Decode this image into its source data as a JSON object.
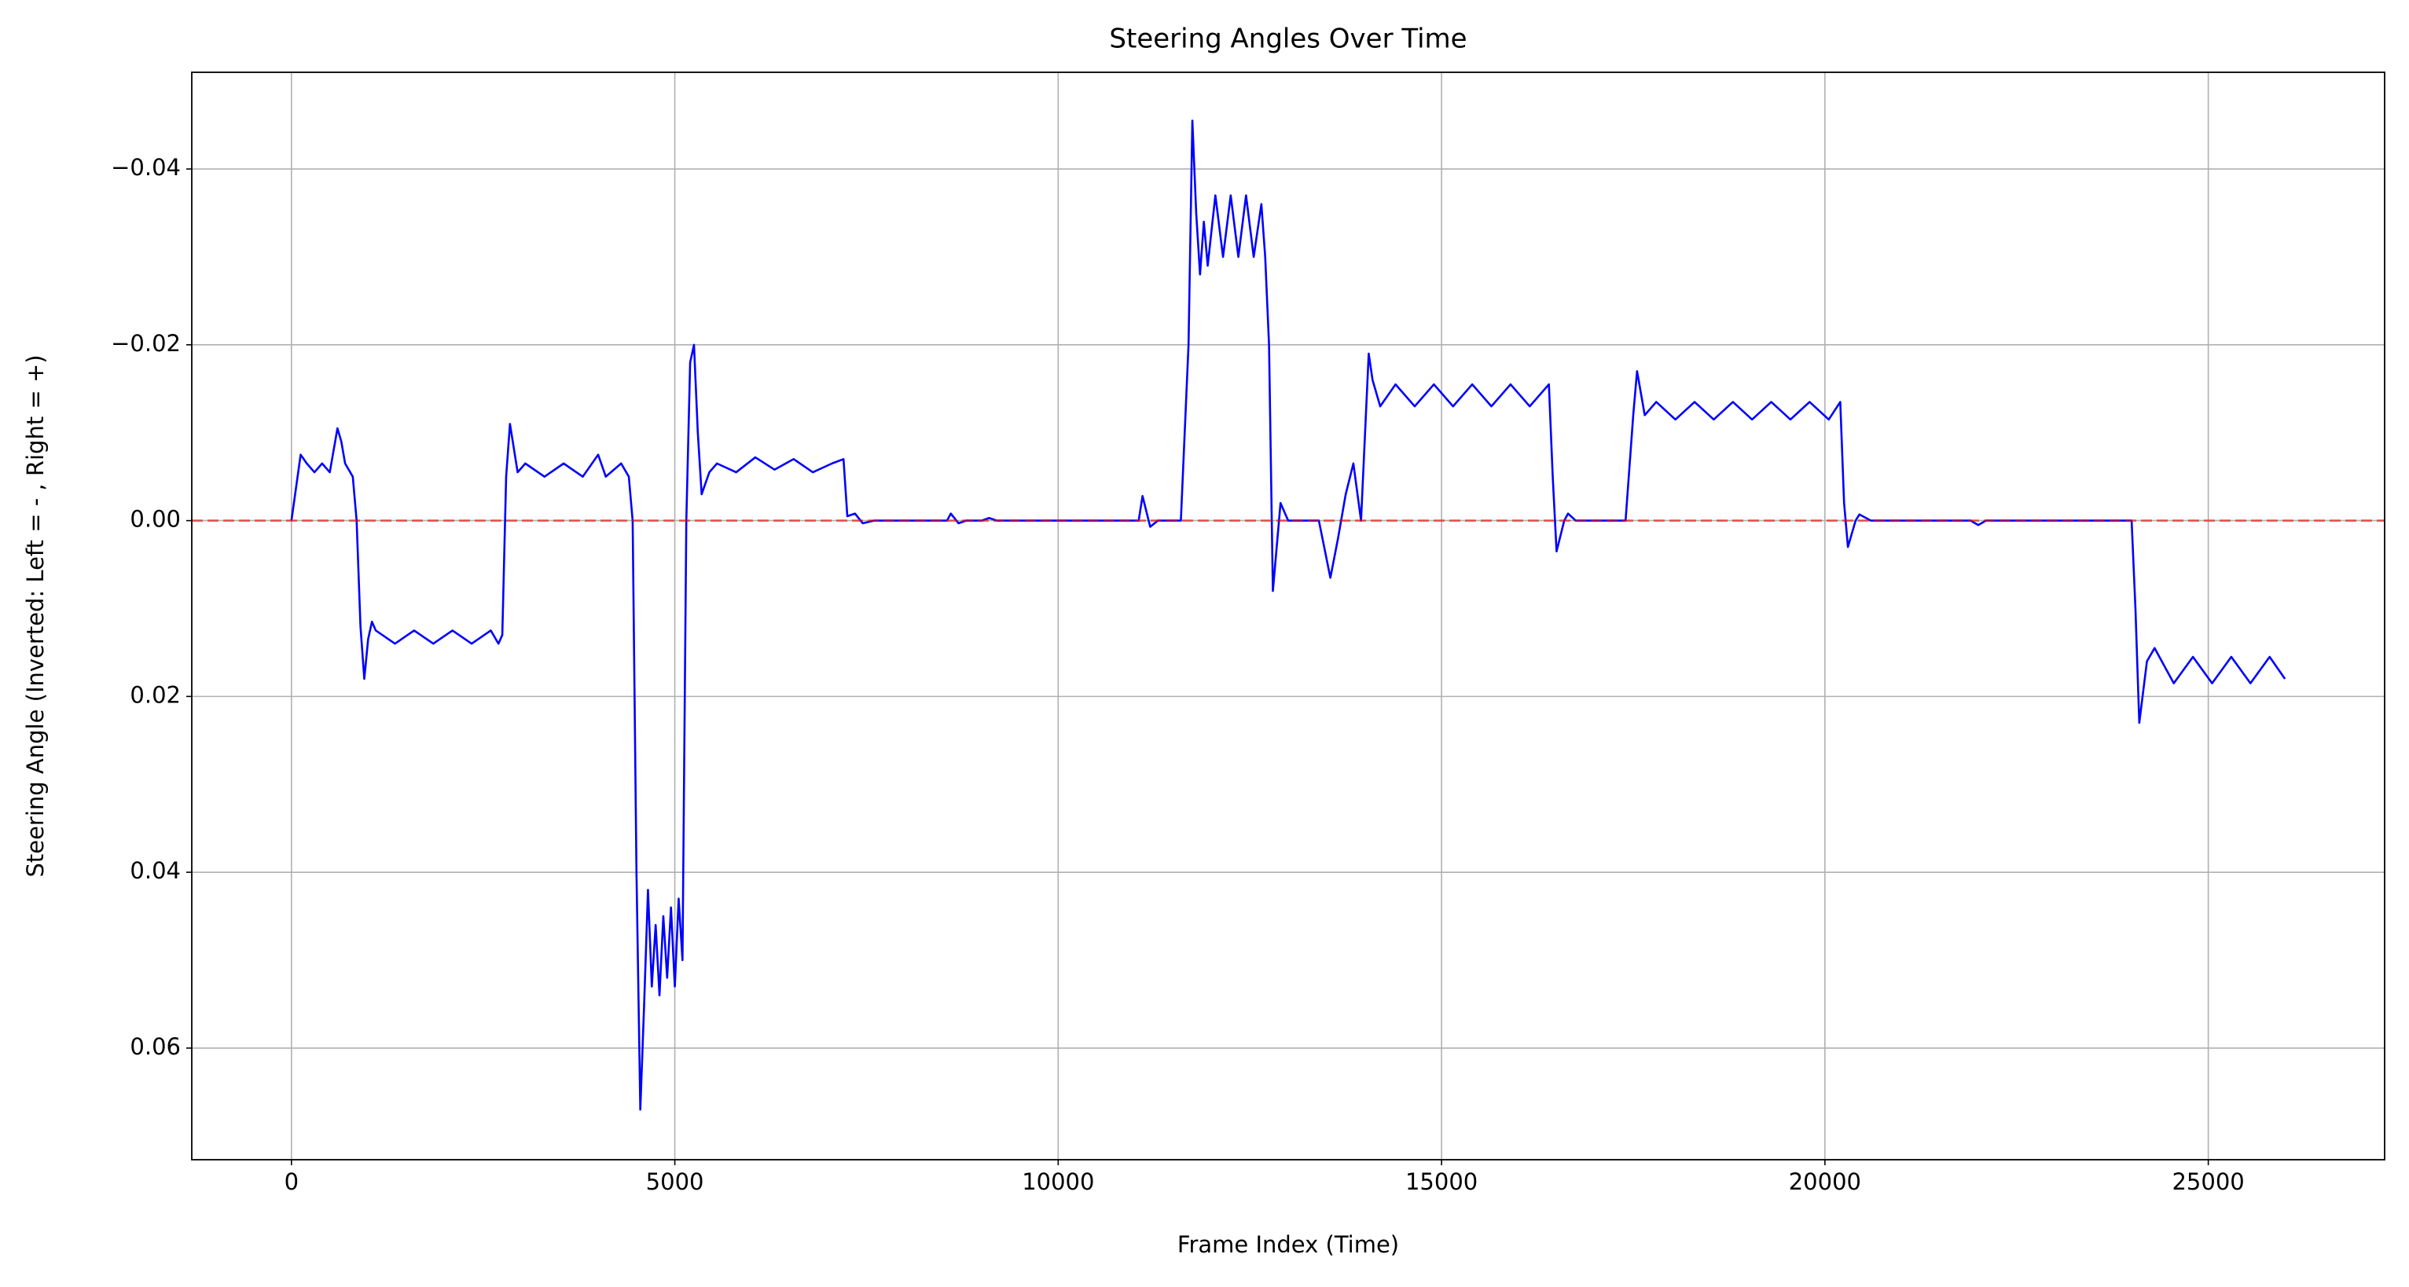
{
  "chart_data": {
    "type": "line",
    "title": "Steering Angles Over Time",
    "x_label": "Frame Index (Time)",
    "y_label": "Steering Angle (Inverted: Left = - , Right = +)",
    "color": "blue",
    "grid": true,
    "y_inverted": true,
    "xlim": [
      -1300,
      27300
    ],
    "ylim": [
      -0.051,
      0.0727
    ],
    "xticks": [
      0,
      5000,
      10000,
      15000,
      20000,
      25000
    ],
    "yticks": [
      {
        "value": -0.04,
        "label": "−0.04"
      },
      {
        "value": -0.02,
        "label": "−0.02"
      },
      {
        "value": 0,
        "label": "0.00"
      },
      0.02,
      0.04,
      0.06
    ],
    "hline": {
      "value": 0,
      "color": "red",
      "style": "dashed"
    },
    "x": [
      0,
      120,
      200,
      300,
      400,
      500,
      600,
      650,
      700,
      800,
      850,
      900,
      950,
      1000,
      1050,
      1100,
      1350,
      1600,
      1850,
      2100,
      2350,
      2600,
      2700,
      2750,
      2800,
      2850,
      2950,
      3050,
      3300,
      3550,
      3800,
      4000,
      4100,
      4300,
      4400,
      4450,
      4500,
      4550,
      4600,
      4650,
      4700,
      4750,
      4800,
      4850,
      4900,
      4950,
      5000,
      5050,
      5100,
      5150,
      5200,
      5250,
      5300,
      5350,
      5450,
      5550,
      5800,
      6050,
      6300,
      6550,
      6800,
      7050,
      7200,
      7250,
      7350,
      7450,
      7600,
      8550,
      8600,
      8700,
      8800,
      9000,
      9100,
      9200,
      11050,
      11100,
      11200,
      11300,
      11600,
      11700,
      11750,
      11800,
      11850,
      11900,
      11950,
      12050,
      12150,
      12250,
      12350,
      12450,
      12550,
      12650,
      12700,
      12750,
      12800,
      12900,
      13000,
      13400,
      13550,
      13650,
      13750,
      13850,
      13950,
      14050,
      14100,
      14200,
      14400,
      14650,
      14900,
      15150,
      15400,
      15650,
      15900,
      16150,
      16400,
      16450,
      16500,
      16600,
      16650,
      16750,
      17400,
      17500,
      17550,
      17650,
      17800,
      18050,
      18300,
      18550,
      18800,
      19050,
      19300,
      19550,
      19800,
      20050,
      20200,
      20250,
      20300,
      20400,
      20450,
      20600,
      21900,
      22000,
      22100,
      24000,
      24050,
      24100,
      24200,
      24300,
      24550,
      24800,
      25050,
      25300,
      25550,
      25800,
      26000
    ],
    "values": [
      0,
      -0.0075,
      -0.0065,
      -0.0055,
      -0.0065,
      -0.0055,
      -0.0105,
      -0.009,
      -0.0065,
      -0.005,
      0,
      0.012,
      0.018,
      0.0135,
      0.0115,
      0.0125,
      0.014,
      0.0125,
      0.014,
      0.0125,
      0.014,
      0.0125,
      0.014,
      0.013,
      -0.005,
      -0.011,
      -0.0055,
      -0.0065,
      -0.005,
      -0.0065,
      -0.005,
      -0.0075,
      -0.005,
      -0.0065,
      -0.005,
      0,
      0.04,
      0.067,
      0.055,
      0.042,
      0.053,
      0.046,
      0.054,
      0.045,
      0.052,
      0.044,
      0.053,
      0.043,
      0.05,
      0,
      -0.018,
      -0.02,
      -0.01,
      -0.003,
      -0.0055,
      -0.0065,
      -0.0055,
      -0.0072,
      -0.0058,
      -0.007,
      -0.0055,
      -0.0065,
      -0.007,
      -0.0005,
      -0.0008,
      0.0003,
      0,
      0,
      -0.0008,
      0.0003,
      0,
      0,
      -0.0003,
      0,
      0,
      -0.0028,
      0.0007,
      0,
      0,
      -0.02,
      -0.0455,
      -0.035,
      -0.028,
      -0.034,
      -0.029,
      -0.037,
      -0.03,
      -0.037,
      -0.03,
      -0.037,
      -0.03,
      -0.036,
      -0.03,
      -0.02,
      0.008,
      -0.002,
      0,
      0,
      0.0065,
      0.002,
      -0.003,
      -0.0065,
      0,
      -0.019,
      -0.016,
      -0.013,
      -0.0155,
      -0.013,
      -0.0155,
      -0.013,
      -0.0155,
      -0.013,
      -0.0155,
      -0.013,
      -0.0155,
      -0.005,
      0.0035,
      0,
      -0.0008,
      0,
      0,
      -0.012,
      -0.017,
      -0.012,
      -0.0135,
      -0.0115,
      -0.0135,
      -0.0115,
      -0.0135,
      -0.0115,
      -0.0135,
      -0.0115,
      -0.0135,
      -0.0115,
      -0.0135,
      -0.002,
      0.003,
      0,
      -0.0007,
      0,
      0,
      0.0005,
      0,
      0,
      0.01,
      0.023,
      0.016,
      0.0145,
      0.0185,
      0.0155,
      0.0185,
      0.0155,
      0.0185,
      0.0155,
      0.018
    ]
  }
}
